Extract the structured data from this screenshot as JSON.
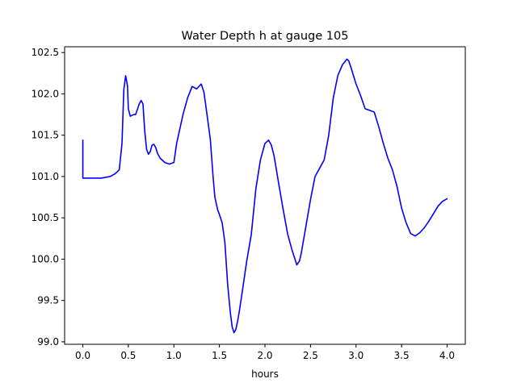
{
  "chart_data": {
    "type": "line",
    "title": "Water Depth h at gauge 105",
    "xlabel": "hours",
    "ylabel": "",
    "xlim": [
      -0.2,
      4.2
    ],
    "ylim": [
      98.97,
      102.57
    ],
    "xticks": [
      0.0,
      0.5,
      1.0,
      1.5,
      2.0,
      2.5,
      3.0,
      3.5,
      4.0
    ],
    "xtick_labels": [
      "0.0",
      "0.5",
      "1.0",
      "1.5",
      "2.0",
      "2.5",
      "3.0",
      "3.5",
      "4.0"
    ],
    "yticks": [
      99.0,
      99.5,
      100.0,
      100.5,
      101.0,
      101.5,
      102.0,
      102.5
    ],
    "ytick_labels": [
      "99.0",
      "99.5",
      "100.0",
      "100.5",
      "101.0",
      "101.5",
      "102.0",
      "102.5"
    ],
    "grid": false,
    "series": [
      {
        "color": "#0000ff",
        "x": [
          0.0,
          0.0,
          0.05,
          0.1,
          0.15,
          0.2,
          0.25,
          0.3,
          0.35,
          0.4,
          0.43,
          0.45,
          0.47,
          0.49,
          0.5,
          0.52,
          0.54,
          0.56,
          0.58,
          0.62,
          0.64,
          0.66,
          0.68,
          0.7,
          0.72,
          0.74,
          0.76,
          0.78,
          0.8,
          0.82,
          0.85,
          0.9,
          0.95,
          1.0,
          1.03,
          1.07,
          1.1,
          1.15,
          1.2,
          1.25,
          1.3,
          1.33,
          1.36,
          1.4,
          1.43,
          1.45,
          1.48,
          1.5,
          1.53,
          1.56,
          1.59,
          1.62,
          1.64,
          1.66,
          1.68,
          1.7,
          1.72,
          1.75,
          1.8,
          1.85,
          1.9,
          1.95,
          2.0,
          2.04,
          2.07,
          2.1,
          2.15,
          2.2,
          2.25,
          2.3,
          2.35,
          2.38,
          2.4,
          2.45,
          2.5,
          2.55,
          2.6,
          2.65,
          2.7,
          2.75,
          2.8,
          2.85,
          2.9,
          2.92,
          2.95,
          3.0,
          3.05,
          3.1,
          3.15,
          3.2,
          3.25,
          3.3,
          3.35,
          3.4,
          3.45,
          3.5,
          3.55,
          3.6,
          3.65,
          3.7,
          3.75,
          3.8,
          3.85,
          3.9,
          3.95,
          4.0
        ],
        "y": [
          101.44,
          100.98,
          100.98,
          100.98,
          100.98,
          100.98,
          100.99,
          101.0,
          101.03,
          101.08,
          101.4,
          102.05,
          102.22,
          102.1,
          101.82,
          101.73,
          101.74,
          101.75,
          101.75,
          101.88,
          101.92,
          101.88,
          101.55,
          101.33,
          101.27,
          101.3,
          101.38,
          101.39,
          101.35,
          101.28,
          101.22,
          101.17,
          101.15,
          101.17,
          101.4,
          101.6,
          101.75,
          101.95,
          102.09,
          102.06,
          102.12,
          102.02,
          101.78,
          101.45,
          101.0,
          100.75,
          100.6,
          100.54,
          100.44,
          100.2,
          99.7,
          99.35,
          99.18,
          99.11,
          99.15,
          99.25,
          99.38,
          99.6,
          99.98,
          100.3,
          100.85,
          101.2,
          101.4,
          101.44,
          101.38,
          101.25,
          100.92,
          100.6,
          100.3,
          100.1,
          99.93,
          99.98,
          100.08,
          100.4,
          100.72,
          101.0,
          101.1,
          101.2,
          101.5,
          101.95,
          102.22,
          102.35,
          102.42,
          102.4,
          102.3,
          102.12,
          101.98,
          101.82,
          101.8,
          101.78,
          101.6,
          101.4,
          101.22,
          101.08,
          100.88,
          100.62,
          100.44,
          100.31,
          100.28,
          100.32,
          100.38,
          100.46,
          100.55,
          100.64,
          100.7,
          100.73
        ]
      }
    ]
  }
}
